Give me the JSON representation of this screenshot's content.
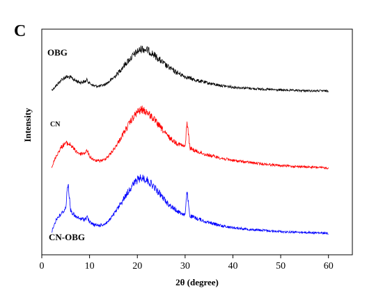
{
  "panel_label": "C",
  "chart_data": {
    "type": "line",
    "title": "",
    "xlabel": "2θ (degree)",
    "ylabel": "Intensity",
    "xlim": [
      0,
      65
    ],
    "xticks": [
      0,
      10,
      20,
      30,
      40,
      50,
      60
    ],
    "y_tick_labels": false,
    "grid": false,
    "legend": "inline labels beside each curve",
    "series": [
      {
        "name": "OBG",
        "color": "#000000",
        "x": [
          2.1,
          3,
          4,
          5,
          6,
          7,
          8,
          9,
          9.5,
          10,
          11,
          12,
          13,
          14,
          15,
          16,
          17,
          18,
          19,
          20,
          21,
          22,
          23,
          24,
          25,
          26,
          28,
          30,
          32,
          35,
          38,
          40,
          45,
          50,
          55,
          60
        ],
        "y": [
          0.02,
          0.12,
          0.25,
          0.33,
          0.32,
          0.25,
          0.2,
          0.22,
          0.26,
          0.18,
          0.12,
          0.11,
          0.14,
          0.21,
          0.31,
          0.43,
          0.57,
          0.7,
          0.82,
          0.93,
          1.0,
          0.97,
          0.9,
          0.8,
          0.7,
          0.6,
          0.45,
          0.34,
          0.26,
          0.18,
          0.12,
          0.09,
          0.05,
          0.02,
          0.005,
          0.0
        ]
      },
      {
        "name": "CN",
        "color": "#ff0000",
        "x": [
          2.1,
          3,
          4,
          5,
          6,
          7,
          8,
          9,
          9.5,
          10,
          11,
          12,
          13,
          14,
          15,
          16,
          17,
          18,
          19,
          20,
          21,
          22,
          23,
          24,
          25,
          26,
          27,
          28,
          29,
          30,
          30.4,
          31,
          32,
          34,
          36,
          38,
          40,
          45,
          50,
          55,
          60
        ],
        "y": [
          0.02,
          0.2,
          0.35,
          0.43,
          0.4,
          0.3,
          0.24,
          0.26,
          0.3,
          0.2,
          0.13,
          0.12,
          0.14,
          0.21,
          0.31,
          0.44,
          0.58,
          0.72,
          0.85,
          0.96,
          1.0,
          0.96,
          0.88,
          0.78,
          0.68,
          0.58,
          0.5,
          0.44,
          0.4,
          0.36,
          0.8,
          0.34,
          0.3,
          0.24,
          0.2,
          0.16,
          0.13,
          0.08,
          0.04,
          0.02,
          0.0
        ]
      },
      {
        "name": "CN-OBG",
        "color": "#0000ff",
        "x": [
          2.1,
          3,
          4,
          5,
          5.5,
          6,
          7,
          8,
          9,
          9.5,
          10,
          11,
          12,
          13,
          14,
          15,
          16,
          17,
          18,
          19,
          20,
          21,
          22,
          23,
          24,
          25,
          26,
          27,
          28,
          29,
          30,
          30.4,
          31,
          32,
          34,
          36,
          38,
          40,
          45,
          50,
          55,
          60
        ],
        "y": [
          0.03,
          0.25,
          0.34,
          0.45,
          0.93,
          0.42,
          0.3,
          0.26,
          0.25,
          0.3,
          0.2,
          0.15,
          0.14,
          0.16,
          0.22,
          0.33,
          0.46,
          0.6,
          0.74,
          0.87,
          0.96,
          1.0,
          0.96,
          0.88,
          0.78,
          0.68,
          0.57,
          0.49,
          0.42,
          0.37,
          0.33,
          0.75,
          0.31,
          0.28,
          0.22,
          0.17,
          0.13,
          0.1,
          0.06,
          0.03,
          0.015,
          0.0
        ]
      }
    ]
  }
}
